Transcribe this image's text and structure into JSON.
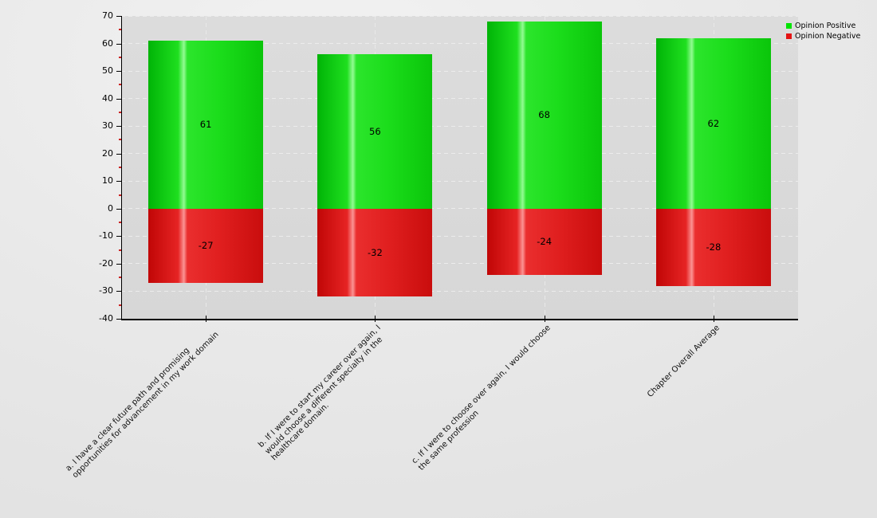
{
  "chart_data": {
    "type": "bar",
    "title": "",
    "categories": [
      "a. I have a clear future path and promising\nopportunities for advancement in my work domain",
      "b. If I were to start my career over again, I\nwould choose a different specialty in the\nhealthcare domain.",
      "c. If I were to choose over again, I would choose\nthe same profession",
      "Chapter Overall Average"
    ],
    "series": [
      {
        "name": "Opinion Positive",
        "color": "#00e400",
        "values": [
          61,
          56,
          68,
          62
        ]
      },
      {
        "name": "Opinion Negative",
        "color": "#e41414",
        "values": [
          -27,
          -32,
          -24,
          -28
        ]
      }
    ],
    "value_labels": {
      "positive": [
        "61",
        "56",
        "68",
        "62"
      ],
      "negative": [
        "-27",
        "-32",
        "-24",
        "-28"
      ]
    },
    "ylim": [
      -40,
      70
    ],
    "y_ticks": [
      70,
      60,
      50,
      40,
      30,
      20,
      10,
      0,
      -10,
      -20,
      -30,
      -40
    ],
    "y_minor_step": 5,
    "grid": true,
    "legend_position": "top-right",
    "colors": {
      "positive_bar": "#1fdf1f",
      "negative_bar": "#e62424",
      "plot_background": "#d9d9d9",
      "page_background": "#e8e8e8",
      "minor_tick": "#cc2222",
      "gridline": "#ececec"
    }
  }
}
